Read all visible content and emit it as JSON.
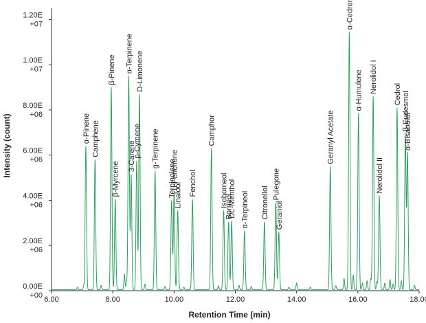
{
  "chart_data": {
    "type": "line",
    "title": "",
    "xlabel": "Retention Time (min)",
    "ylabel": "Intensity (count)",
    "xlim": [
      6.0,
      18.0
    ],
    "ylim": [
      0,
      12500000
    ],
    "grid": false,
    "line_color": "#2e9e5e",
    "x_ticks": [
      {
        "value": 6.0,
        "label": "6.00"
      },
      {
        "value": 8.0,
        "label": "8.00"
      },
      {
        "value": 10.0,
        "label": "10.00"
      },
      {
        "value": 12.0,
        "label": "12.00"
      },
      {
        "value": 14.0,
        "label": "14.00"
      },
      {
        "value": 16.0,
        "label": "16.00"
      },
      {
        "value": 18.0,
        "label": "18.00"
      }
    ],
    "y_ticks": [
      {
        "value": 0,
        "line1": "0.00E",
        "line2": "+00"
      },
      {
        "value": 2000000,
        "line1": "2.00E",
        "line2": "+06"
      },
      {
        "value": 4000000,
        "line1": "4.00E",
        "line2": "+06"
      },
      {
        "value": 6000000,
        "line1": "6.00E",
        "line2": "+06"
      },
      {
        "value": 8000000,
        "line1": "8.00E",
        "line2": "+06"
      },
      {
        "value": 10000000,
        "line1": "1.00E",
        "line2": "+07"
      },
      {
        "value": 12000000,
        "line1": "1.20E",
        "line2": "+07"
      }
    ],
    "peaks": [
      {
        "label": "α-Pinene",
        "x": 7.12,
        "y": 6350000
      },
      {
        "label": "Camphene",
        "x": 7.42,
        "y": 5750000
      },
      {
        "label": "β-Pinene",
        "x": 7.95,
        "y": 8950000
      },
      {
        "label": "β-Myrcene",
        "x": 8.08,
        "y": 4000000
      },
      {
        "label": "α-Terpinene",
        "x": 8.52,
        "y": 9450000
      },
      {
        "label": "3-Carene",
        "x": 8.6,
        "y": 5100000
      },
      {
        "label": "p-Cymene",
        "x": 8.78,
        "y": 5700000
      },
      {
        "label": "D-Limonene",
        "x": 8.87,
        "y": 8650000
      },
      {
        "label": "g-Terpinene",
        "x": 9.38,
        "y": 5250000
      },
      {
        "label": "Terpinolene",
        "x": 9.92,
        "y": 3950000
      },
      {
        "label": "L-Fenchone",
        "x": 10.0,
        "y": 4300000
      },
      {
        "label": "Linalool",
        "x": 10.12,
        "y": 3500000
      },
      {
        "label": "Fenchol",
        "x": 10.6,
        "y": 4000000
      },
      {
        "label": "Camphor",
        "x": 11.22,
        "y": 6250000
      },
      {
        "label": "Isoborneol",
        "x": 11.62,
        "y": 3500000
      },
      {
        "label": "Borneol",
        "x": 11.78,
        "y": 3000000
      },
      {
        "label": "DL-Menthol",
        "x": 11.88,
        "y": 3050000
      },
      {
        "label": "α-Terpineol",
        "x": 12.3,
        "y": 2600000
      },
      {
        "label": "Citronellol",
        "x": 12.95,
        "y": 3000000
      },
      {
        "label": "Pulegone",
        "x": 13.32,
        "y": 3850000
      },
      {
        "label": "Geraniol",
        "x": 13.42,
        "y": 2550000
      },
      {
        "label": "Geranyl Acetate",
        "x": 15.1,
        "y": 5450000
      },
      {
        "label": "α-Cedrene &",
        "x": 15.72,
        "y": 11400000
      },
      {
        "label": "α-Humulene",
        "x": 16.02,
        "y": 7800000
      },
      {
        "label": "Nerolidol I",
        "x": 16.5,
        "y": 8550000
      },
      {
        "label": "Nerolidol II",
        "x": 16.7,
        "y": 4150000
      },
      {
        "label": "Cedrol",
        "x": 17.28,
        "y": 8050000
      },
      {
        "label": "β-Eudesmol",
        "x": 17.55,
        "y": 6900000
      },
      {
        "label": "α-Bisabolol",
        "x": 17.62,
        "y": 6050000
      }
    ],
    "minor_peaks": [
      {
        "x": 6.85,
        "y": 120000
      },
      {
        "x": 7.05,
        "y": 150000
      },
      {
        "x": 7.62,
        "y": 200000
      },
      {
        "x": 8.38,
        "y": 700000
      },
      {
        "x": 8.45,
        "y": 350000
      },
      {
        "x": 9.05,
        "y": 250000
      },
      {
        "x": 9.7,
        "y": 150000
      },
      {
        "x": 10.32,
        "y": 120000
      },
      {
        "x": 11.45,
        "y": 180000
      },
      {
        "x": 12.12,
        "y": 200000
      },
      {
        "x": 12.52,
        "y": 150000
      },
      {
        "x": 13.75,
        "y": 120000
      },
      {
        "x": 14.0,
        "y": 300000
      },
      {
        "x": 14.45,
        "y": 120000
      },
      {
        "x": 15.28,
        "y": 180000
      },
      {
        "x": 15.55,
        "y": 500000
      },
      {
        "x": 15.85,
        "y": 650000
      },
      {
        "x": 16.15,
        "y": 300000
      },
      {
        "x": 16.3,
        "y": 400000
      },
      {
        "x": 16.42,
        "y": 500000
      },
      {
        "x": 16.62,
        "y": 350000
      },
      {
        "x": 16.88,
        "y": 300000
      },
      {
        "x": 17.05,
        "y": 450000
      },
      {
        "x": 17.15,
        "y": 250000
      },
      {
        "x": 17.42,
        "y": 400000
      },
      {
        "x": 17.85,
        "y": 200000
      }
    ]
  }
}
